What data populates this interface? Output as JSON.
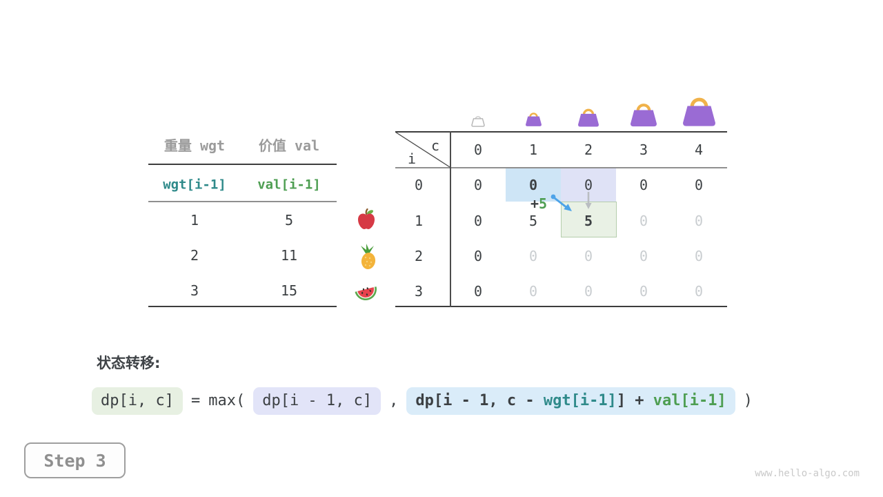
{
  "items_table": {
    "headers": [
      "重量 wgt",
      "价值 val"
    ],
    "symbol_row": [
      "wgt[i-1]",
      "val[i-1]"
    ],
    "rows": [
      {
        "wgt": "1",
        "val": "5",
        "icon": "apple-icon"
      },
      {
        "wgt": "2",
        "val": "11",
        "icon": "pineapple-icon"
      },
      {
        "wgt": "3",
        "val": "15",
        "icon": "watermelon-icon"
      }
    ]
  },
  "dp_table": {
    "corner": {
      "row_label": "i",
      "col_label": "c"
    },
    "col_headers": [
      "0",
      "1",
      "2",
      "3",
      "4"
    ],
    "row_headers": [
      "0",
      "1",
      "2",
      "3"
    ],
    "cells": [
      [
        "0",
        "0",
        "0",
        "0",
        "0"
      ],
      [
        "0",
        "5",
        "5",
        "0",
        "0"
      ],
      [
        "0",
        "0",
        "0",
        "0",
        "0"
      ],
      [
        "0",
        "0",
        "0",
        "0",
        "0"
      ]
    ],
    "cell_styles": [
      [
        "normal",
        "bold",
        "normal",
        "normal",
        "normal"
      ],
      [
        "normal",
        "normal",
        "bold",
        "dim",
        "dim"
      ],
      [
        "normal",
        "dim",
        "dim",
        "dim",
        "dim"
      ],
      [
        "normal",
        "dim",
        "dim",
        "dim",
        "dim"
      ]
    ],
    "highlights": {
      "keep_source_cell": [
        0,
        1
      ],
      "take_source_cell": [
        0,
        2
      ],
      "target_cell": [
        1,
        2
      ]
    },
    "annotation": {
      "plus": "+",
      "value": "5"
    }
  },
  "bags": {
    "capacities": [
      "0",
      "1",
      "2",
      "3",
      "4"
    ]
  },
  "formula": {
    "label": "状态转移:",
    "lhs": "dp[i, c]",
    "equals": "=",
    "max_open": "max(",
    "option_keep": "dp[i - 1, c]",
    "comma": ",",
    "take_prefix": "dp[i - 1, c - ",
    "take_wgt": "wgt[i-1]",
    "take_mid": "] + ",
    "take_val": "val[i-1]",
    "close_paren": ")"
  },
  "step_label": "Step 3",
  "watermark": "www.hello-algo.com",
  "colors": {
    "ink": "#3c4043",
    "dim_text": "#c9cdd0",
    "gray_header": "#9b9b9b",
    "teal": "#2f8a8a",
    "green": "#4e9e52",
    "highlight_blue": "#cee5f6",
    "highlight_purple": "#dfe2f6",
    "highlight_green_bg": "#e9f1e5",
    "highlight_green_border": "#b4cdab",
    "pill_green": "#e7f0e2",
    "pill_purple": "#e2e4f8",
    "pill_blue": "#daecf9",
    "arrow_blue": "#4da3e8",
    "arrow_gray": "#b9bdc1",
    "bag_purple": "#9a6bd4",
    "bag_handle": "#f0b24a"
  }
}
